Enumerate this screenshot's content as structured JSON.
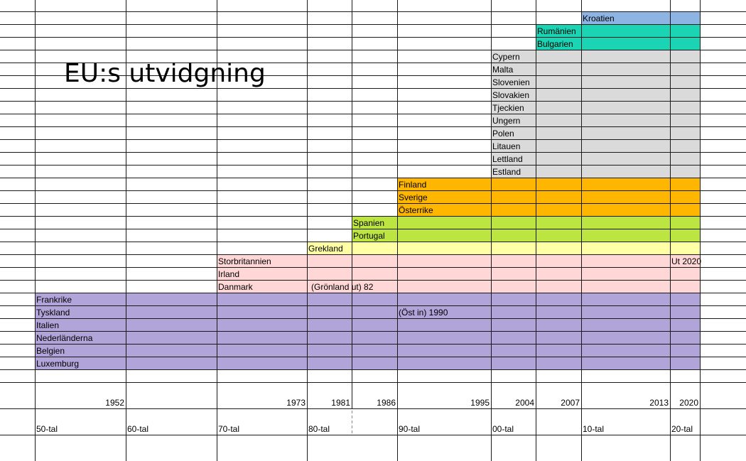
{
  "title": "EU:s utvidgning",
  "colors": {
    "blue": "#8db4e2",
    "teal": "#1ad4b4",
    "gray": "#dadada",
    "orange": "#ffb600",
    "green": "#bde542",
    "yellow": "#ffffa6",
    "pink": "#ffd7d7",
    "purple": "#b0a4d8",
    "grid": "#1a1a1a"
  },
  "countries": [
    {
      "name": "Kroatien",
      "year": "2013",
      "color": "blue"
    },
    {
      "name": "Rumänien",
      "year": "2007",
      "color": "teal"
    },
    {
      "name": "Bulgarien",
      "year": "2007",
      "color": "teal"
    },
    {
      "name": "Cypern",
      "year": "2004",
      "color": "gray"
    },
    {
      "name": "Malta",
      "year": "2004",
      "color": "gray"
    },
    {
      "name": "Slovenien",
      "year": "2004",
      "color": "gray"
    },
    {
      "name": "Slovakien",
      "year": "2004",
      "color": "gray"
    },
    {
      "name": "Tjeckien",
      "year": "2004",
      "color": "gray"
    },
    {
      "name": "Ungern",
      "year": "2004",
      "color": "gray"
    },
    {
      "name": "Polen",
      "year": "2004",
      "color": "gray"
    },
    {
      "name": "Litauen",
      "year": "2004",
      "color": "gray"
    },
    {
      "name": "Lettland",
      "year": "2004",
      "color": "gray"
    },
    {
      "name": "Estland",
      "year": "2004",
      "color": "gray"
    },
    {
      "name": "Finland",
      "year": "1995",
      "color": "orange"
    },
    {
      "name": "Sverige",
      "year": "1995",
      "color": "orange"
    },
    {
      "name": "Österrike",
      "year": "1995",
      "color": "orange"
    },
    {
      "name": "Spanien",
      "year": "1986",
      "color": "green"
    },
    {
      "name": "Portugal",
      "year": "1986",
      "color": "green"
    },
    {
      "name": "Grekland",
      "year": "1981",
      "color": "yellow"
    },
    {
      "name": "Storbritannien",
      "year": "1973",
      "color": "pink"
    },
    {
      "name": "Irland",
      "year": "1973",
      "color": "pink"
    },
    {
      "name": "Danmark",
      "year": "1973",
      "color": "pink"
    },
    {
      "name": "Frankrike",
      "year": "1952",
      "color": "purple"
    },
    {
      "name": "Tyskland",
      "year": "1952",
      "color": "purple"
    },
    {
      "name": "Italien",
      "year": "1952",
      "color": "purple"
    },
    {
      "name": "Nederländerna",
      "year": "1952",
      "color": "purple"
    },
    {
      "name": "Belgien",
      "year": "1952",
      "color": "purple"
    },
    {
      "name": "Luxemburg",
      "year": "1952",
      "color": "purple"
    }
  ],
  "notes": {
    "uk_exit": "Ut 2020",
    "greenland": "(Grönland ut) 82",
    "east_germany": "(Öst in) 1990"
  },
  "years": [
    "1952",
    "1973",
    "1981",
    "1986",
    "1995",
    "2004",
    "2007",
    "2013",
    "2020"
  ],
  "decades": [
    "50-tal",
    "60-tal",
    "70-tal",
    "80-tal",
    "90-tal",
    "00-tal",
    "10-tal",
    "20-tal"
  ]
}
